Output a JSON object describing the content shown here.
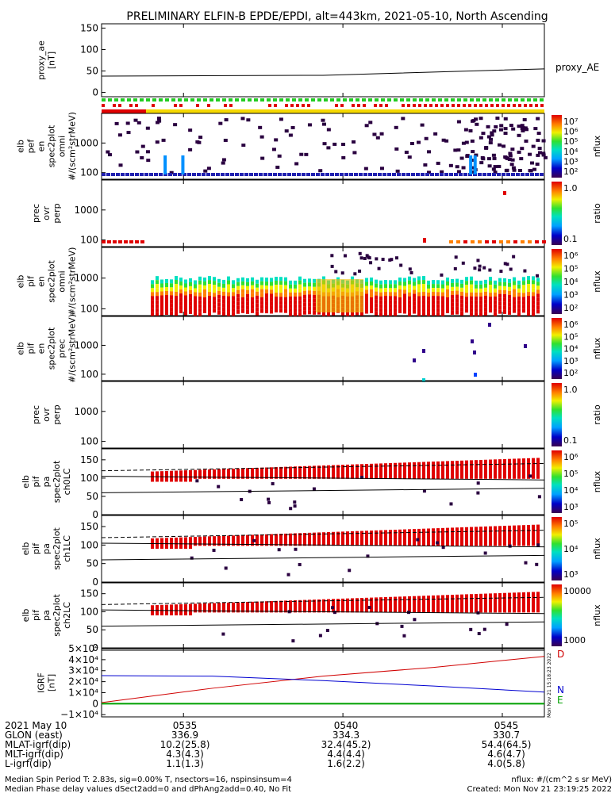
{
  "title": "PRELIMINARY ELFIN-B EPDE/EPDI, alt=443km, 2021-05-10, North Ascending",
  "colors": {
    "bar_red": "#e00000",
    "bar_green": "#22cc22",
    "bar_yellow": "#f5d800",
    "igrf_d": "#d00000",
    "igrf_n": "#0000d0",
    "igrf_e": "#00a000"
  },
  "chart_data": [
    {
      "type": "line",
      "panel": "proxy_ae",
      "ylabel": [
        "proxy_ae",
        "[nT]"
      ],
      "yticks": [
        "150",
        "100",
        "50",
        "0"
      ],
      "ylim": [
        -10,
        160
      ],
      "series": [
        {
          "name": "proxy_AE",
          "x": [
            0.0,
            0.5,
            1.0
          ],
          "values": [
            38,
            40,
            55
          ]
        }
      ]
    },
    {
      "type": "heatmap",
      "panel": "elb_pef_en_spec2plot_omni",
      "ylabel": [
        "elb",
        "pef",
        "en",
        "spec2plot",
        "omni",
        "#/(scm²strMeV)"
      ],
      "yticks": [
        "1000",
        "100"
      ],
      "ylog": true,
      "colorbar": {
        "label": "nflux",
        "ticks": [
          "10⁷",
          "10⁶",
          "10⁵",
          "10⁴",
          "10³",
          "10²"
        ]
      }
    },
    {
      "type": "heatmap",
      "panel": "prec_ovr_perp_electrons",
      "ylabel": [
        "prec",
        "ovr",
        "perp"
      ],
      "yticks": [
        "1000",
        "100"
      ],
      "ylog": true,
      "colorbar": {
        "label": "ratio",
        "ticks": [
          "1.0",
          "0.1"
        ]
      }
    },
    {
      "type": "heatmap",
      "panel": "elb_pif_en_spec2plot_omni",
      "ylabel": [
        "elb",
        "pif",
        "en",
        "spec2plot",
        "omni",
        "#/(scm²strMeV)"
      ],
      "yticks": [
        "1000",
        "100"
      ],
      "ylog": true,
      "colorbar": {
        "label": "nflux",
        "ticks": [
          "10⁶",
          "10⁵",
          "10⁴",
          "10³",
          "10²"
        ]
      }
    },
    {
      "type": "heatmap",
      "panel": "elb_pif_en_spec2plot_prec",
      "ylabel": [
        "elb",
        "pif",
        "en",
        "spec2plot",
        "prec",
        "#/(scm²strMeV)"
      ],
      "yticks": [
        "1000",
        "100"
      ],
      "ylog": true,
      "colorbar": {
        "label": "nflux",
        "ticks": [
          "10⁶",
          "10⁵",
          "10⁴",
          "10³",
          "10²"
        ]
      }
    },
    {
      "type": "heatmap",
      "panel": "prec_ovr_perp_ions",
      "ylabel": [
        "prec",
        "ovr",
        "perp"
      ],
      "yticks": [
        "1000",
        "100"
      ],
      "ylog": true,
      "colorbar": {
        "label": "ratio",
        "ticks": [
          "1.0",
          "0.1"
        ]
      }
    },
    {
      "type": "heatmap",
      "panel": "elb_pif_pa_spec2plot_ch0LC",
      "ylabel": [
        "elb",
        "pif",
        "pa",
        "spec2plot",
        "ch0LC"
      ],
      "yticks": [
        "150",
        "100",
        "50",
        "0"
      ],
      "ylim": [
        0,
        180
      ],
      "colorbar": {
        "label": "nflux",
        "ticks": [
          "10⁶",
          "10⁵",
          "10⁴",
          "10³"
        ]
      }
    },
    {
      "type": "heatmap",
      "panel": "elb_pif_pa_spec2plot_ch1LC",
      "ylabel": [
        "elb",
        "pif",
        "pa",
        "spec2plot",
        "ch1LC"
      ],
      "yticks": [
        "150",
        "100",
        "50",
        "0"
      ],
      "ylim": [
        0,
        180
      ],
      "colorbar": {
        "label": "nflux",
        "ticks": [
          "10⁵",
          "10⁴",
          "10³"
        ]
      }
    },
    {
      "type": "heatmap",
      "panel": "elb_pif_pa_spec2plot_ch2LC",
      "ylabel": [
        "elb",
        "pif",
        "pa",
        "spec2plot",
        "ch2LC"
      ],
      "yticks": [
        "150",
        "100",
        "50",
        "0"
      ],
      "ylim": [
        0,
        180
      ],
      "colorbar": {
        "label": "nflux",
        "ticks": [
          "10000",
          "1000"
        ]
      }
    },
    {
      "type": "line",
      "panel": "igrf",
      "ylabel": [
        "IGRF",
        "[nT]"
      ],
      "yticks": [
        "5×10⁴",
        "4×10⁴",
        "3×10⁴",
        "2×10⁴",
        "1×10⁴",
        "0",
        "−1×10⁴"
      ],
      "ylim": [
        -12000,
        50000
      ],
      "series": [
        {
          "name": "D",
          "x": [
            0.0,
            0.25,
            0.5,
            0.75,
            1.0
          ],
          "values": [
            1000,
            14000,
            25000,
            33000,
            43000
          ]
        },
        {
          "name": "N",
          "x": [
            0.0,
            0.25,
            0.5,
            0.75,
            1.0
          ],
          "values": [
            25500,
            25000,
            21000,
            16000,
            10500
          ]
        },
        {
          "name": "E",
          "x": [
            0.0,
            1.0
          ],
          "values": [
            0,
            0
          ]
        }
      ]
    }
  ],
  "xaxis": {
    "ticks": [
      "0535",
      "0540",
      "0545"
    ],
    "rows": [
      {
        "label": "2021 May 10",
        "values": [
          "0535",
          "0540",
          "0545"
        ]
      },
      {
        "label": "GLON (east)",
        "values": [
          "336.9",
          "334.3",
          "330.7"
        ]
      },
      {
        "label": "MLAT-igrf(dip)",
        "values": [
          "10.2(25.8)",
          "32.4(45.2)",
          "54.4(64.5)"
        ]
      },
      {
        "label": "MLT-igrf(dip)",
        "values": [
          "4.3(4.3)",
          "4.4(4.4)",
          "4.6(4.7)"
        ]
      },
      {
        "label": "L-igrf(dip)",
        "values": [
          "1.1(1.3)",
          "1.6(2.2)",
          "4.0(5.8)"
        ]
      }
    ]
  },
  "footer": {
    "line1": "Median Spin Period T: 2.83s, sig=0.00% T, nsectors=16, nspinsinsum=4",
    "line2": "Median Phase delay values dSect2add=0 and dPhAng2add=0.40, No Fit",
    "units": "nflux: #/(cm^2 s sr MeV)",
    "created": "Created: Mon Nov 21 23:19:25 2022",
    "stamp": "Mon Nov 21 15:18:23 2022"
  }
}
